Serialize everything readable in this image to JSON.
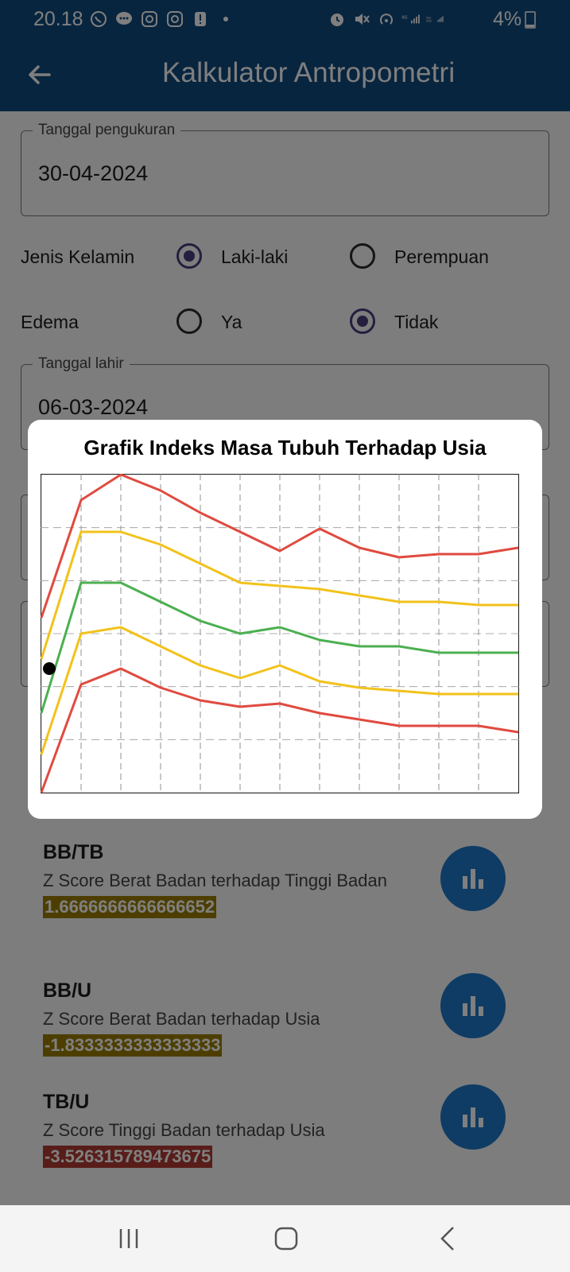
{
  "status": {
    "time": "20.18",
    "battery": "4%",
    "left_icons": [
      "whatsapp-icon",
      "chat-icon",
      "instagram-icon",
      "instagram-icon",
      "alert-icon",
      "dot-icon"
    ],
    "right_icons": [
      "alarm-icon",
      "mute-icon",
      "hotspot-icon",
      "signal-4g-icon",
      "volte-signal-icon"
    ]
  },
  "appbar": {
    "title": "Kalkulator Antropometri"
  },
  "form": {
    "tanggal_pengukuran": {
      "label": "Tanggal pengukuran",
      "value": "30-04-2024"
    },
    "jenis_kelamin": {
      "label": "Jenis Kelamin",
      "options": [
        "Laki-laki",
        "Perempuan"
      ],
      "selected": "Laki-laki"
    },
    "edema": {
      "label": "Edema",
      "options": [
        "Ya",
        "Tidak"
      ],
      "selected": "Tidak"
    },
    "tanggal_lahir": {
      "label": "Tanggal lahir",
      "value": "06-03-2024"
    }
  },
  "results": [
    {
      "title": "BB/TB",
      "description": "Z Score Berat Badan terhadap Tinggi Badan",
      "score": "1.6666666666666652",
      "color": "#9b7d00"
    },
    {
      "title": "BB/U",
      "description": "Z Score Berat Badan terhadap Usia",
      "score": "-1.8333333333333333",
      "color": "#9b7d00"
    },
    {
      "title": "TB/U",
      "description": "Z Score Tinggi Badan terhadap Usia",
      "score": "-3.526315789473675",
      "color": "#b13a33"
    }
  ],
  "dialog": {
    "title": "Grafik Indeks Masa Tubuh Terhadap Usia"
  },
  "colors": {
    "primary": "#114a7e",
    "red": "#e04a3f",
    "yellow": "#f2c21b",
    "green": "#4caf50",
    "fab": "#1e78c8"
  },
  "chart_data": {
    "type": "line",
    "x": [
      0,
      1,
      2,
      3,
      4,
      5,
      6,
      7,
      8,
      9,
      10,
      11,
      12
    ],
    "ylim": [
      0,
      100
    ],
    "grid": true,
    "series": [
      {
        "color": "#e04a3f",
        "values": [
          55,
          92,
          100,
          95,
          88,
          82,
          76,
          83,
          77,
          74,
          75,
          75,
          77
        ]
      },
      {
        "color": "#f2c21b",
        "values": [
          42,
          82,
          82,
          78,
          72,
          66,
          65,
          64,
          62,
          60,
          60,
          59,
          59
        ]
      },
      {
        "color": "#4caf50",
        "values": [
          25,
          66,
          66,
          60,
          54,
          50,
          52,
          48,
          46,
          46,
          44,
          44,
          44
        ]
      },
      {
        "color": "#f2c21b",
        "values": [
          12,
          50,
          52,
          46,
          40,
          36,
          40,
          35,
          33,
          32,
          31,
          31,
          31
        ]
      },
      {
        "color": "#e04a3f",
        "values": [
          0,
          34,
          39,
          33,
          29,
          27,
          28,
          25,
          23,
          21,
          21,
          21,
          19
        ]
      }
    ],
    "point": {
      "x": 0.2,
      "y": 39
    }
  }
}
